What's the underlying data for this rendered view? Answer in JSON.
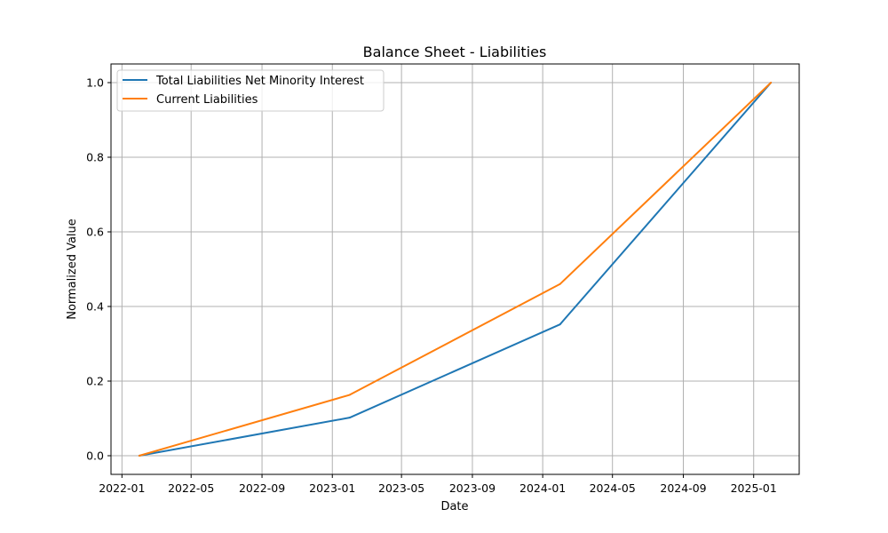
{
  "chart_data": {
    "type": "line",
    "title": "Balance Sheet - Liabilities",
    "xlabel": "Date",
    "ylabel": "Normalized Value",
    "x_ticks": [
      "2022-01",
      "2022-05",
      "2022-09",
      "2023-01",
      "2023-05",
      "2023-09",
      "2024-01",
      "2024-05",
      "2024-09",
      "2025-01"
    ],
    "y_ticks": [
      "0.0",
      "0.2",
      "0.4",
      "0.6",
      "0.8",
      "1.0"
    ],
    "xlim": [
      "2021-12-13",
      "2025-03-21"
    ],
    "ylim": [
      -0.05,
      1.05
    ],
    "grid": true,
    "legend_position": "top-left",
    "x": [
      "2022-01-31",
      "2023-01-31",
      "2024-01-31",
      "2025-01-31"
    ],
    "series": [
      {
        "name": "Total Liabilities Net Minority Interest",
        "color": "#1f77b4",
        "values": [
          0.0,
          0.102,
          0.352,
          1.0
        ]
      },
      {
        "name": "Current Liabilities",
        "color": "#ff7f0e",
        "values": [
          0.0,
          0.163,
          0.46,
          1.0
        ]
      }
    ]
  }
}
